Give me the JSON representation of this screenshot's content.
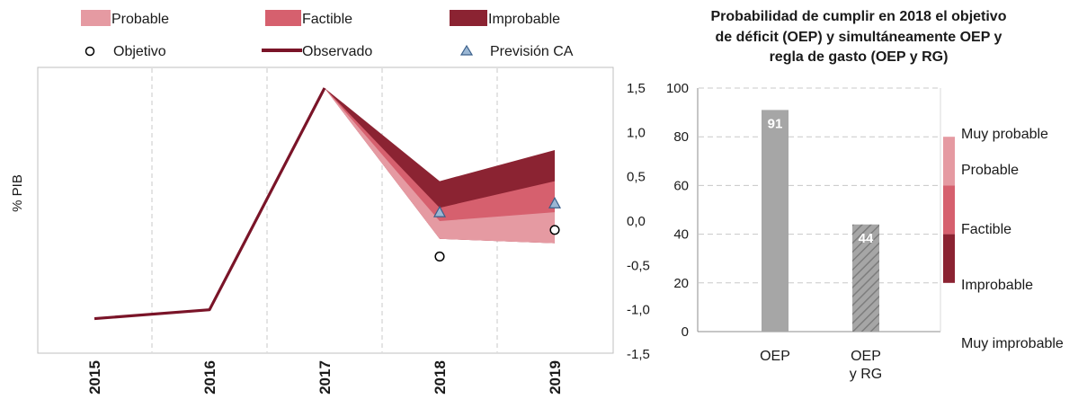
{
  "colors": {
    "probable": "#e59aa2",
    "factible": "#d6606e",
    "improbable": "#8b2332",
    "observado": "#7a1428",
    "bar": "#a6a6a6",
    "triangle": "#9bb7d4",
    "grid": "#c8c8c8"
  },
  "chart_data": [
    {
      "type": "area",
      "ylabel": "% PIB",
      "ylim": [
        -1.5,
        1.5
      ],
      "yticks": [
        "1,5",
        "1,0",
        "0,5",
        "0,0",
        "-0,5",
        "-1,0",
        "-1,5"
      ],
      "legend": {
        "probable": "Probable",
        "factible": "Factible",
        "improbable": "Improbable",
        "objetivo": "Objetivo",
        "observado": "Observado",
        "prevision": "Previsión CA"
      },
      "x": [
        "2015",
        "2016",
        "2017",
        "2018",
        "2019"
      ],
      "observado": [
        -1.1,
        -1.0,
        1.5
      ],
      "bands": {
        "probable_low": [
          -0.2,
          -0.25
        ],
        "probable_high": [
          0.0,
          0.1
        ],
        "factible_high": [
          0.15,
          0.45
        ],
        "improbable_high": [
          0.45,
          0.8
        ]
      },
      "objetivo": [
        -0.4,
        -0.1
      ],
      "prevision_ca": [
        0.1,
        0.2
      ]
    },
    {
      "type": "bar",
      "title": [
        "Probabilidad de cumplir en 2018 el objetivo",
        "de déficit (OEP) y simultáneamente OEP y",
        "regla de gasto (OEP y RG)"
      ],
      "categories": [
        [
          "OEP"
        ],
        [
          "OEP",
          "y RG"
        ]
      ],
      "values": [
        91,
        44
      ],
      "value_labels": [
        "91",
        "44"
      ],
      "ylim": [
        0,
        100
      ],
      "yticks": [
        "100",
        "80",
        "60",
        "40",
        "20",
        "0"
      ],
      "scale_labels": [
        "Muy probable",
        "Probable",
        "Factible",
        "Improbable",
        "Muy improbable"
      ],
      "scale_bands": {
        "probable": [
          60,
          80
        ],
        "factible": [
          40,
          60
        ],
        "improbable": [
          20,
          40
        ]
      }
    }
  ]
}
